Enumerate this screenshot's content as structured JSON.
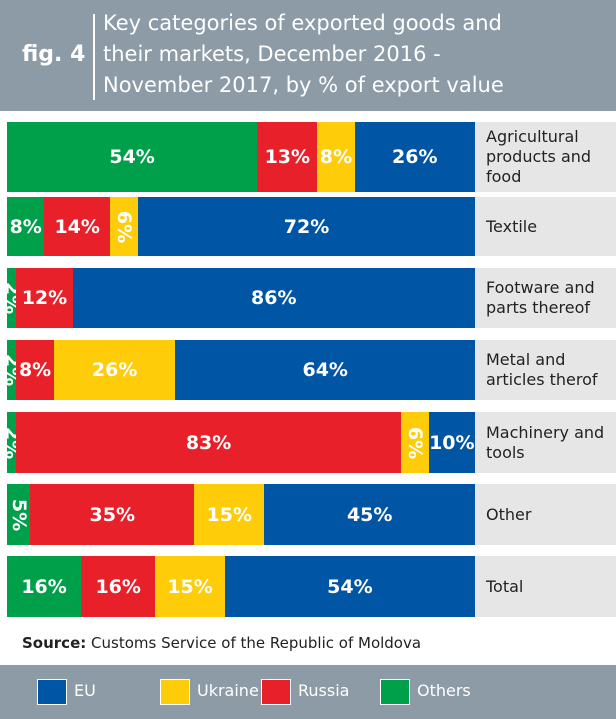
{
  "header": {
    "fig": "fig. 4",
    "title": "Key categories of exported goods and their markets, December 2016 - November 2017, by % of export value"
  },
  "chart_data": {
    "type": "bar",
    "orientation": "horizontal",
    "stacked": true,
    "categories": [
      "Agricultural products and food",
      "Textile",
      "Footware and parts thereof",
      "Metal and articles therof",
      "Machinery and tools",
      "Other",
      "Total"
    ],
    "series": [
      {
        "name": "EU",
        "color": "#0055a5",
        "values": [
          26,
          72,
          86,
          64,
          10,
          45,
          54
        ],
        "value_labels": [
          "26%",
          "72%",
          "86%",
          "64%",
          "10%",
          "45%",
          "54%"
        ]
      },
      {
        "name": "Ukraine",
        "color": "#ffcc0a",
        "values": [
          8,
          6,
          null,
          26,
          6,
          15,
          15
        ],
        "value_labels": [
          "8%",
          "6%",
          null,
          "26%",
          "6%",
          "15%",
          "15%"
        ]
      },
      {
        "name": "Russia",
        "color": "#e8202a",
        "values": [
          13,
          14,
          12,
          8,
          83,
          35,
          16
        ],
        "value_labels": [
          "13%",
          "14%",
          "12%",
          "8%",
          "83%",
          "35%",
          "16%"
        ]
      },
      {
        "name": "Others",
        "color": "#00a04b",
        "values": [
          54,
          8,
          2,
          2,
          2,
          5,
          16
        ],
        "value_labels": [
          "54%",
          "8%",
          "2%",
          "2%",
          "2%",
          "5%",
          "16%"
        ]
      }
    ],
    "source_label": "Source:",
    "source": "Customs Service of the Republic of Moldova"
  }
}
